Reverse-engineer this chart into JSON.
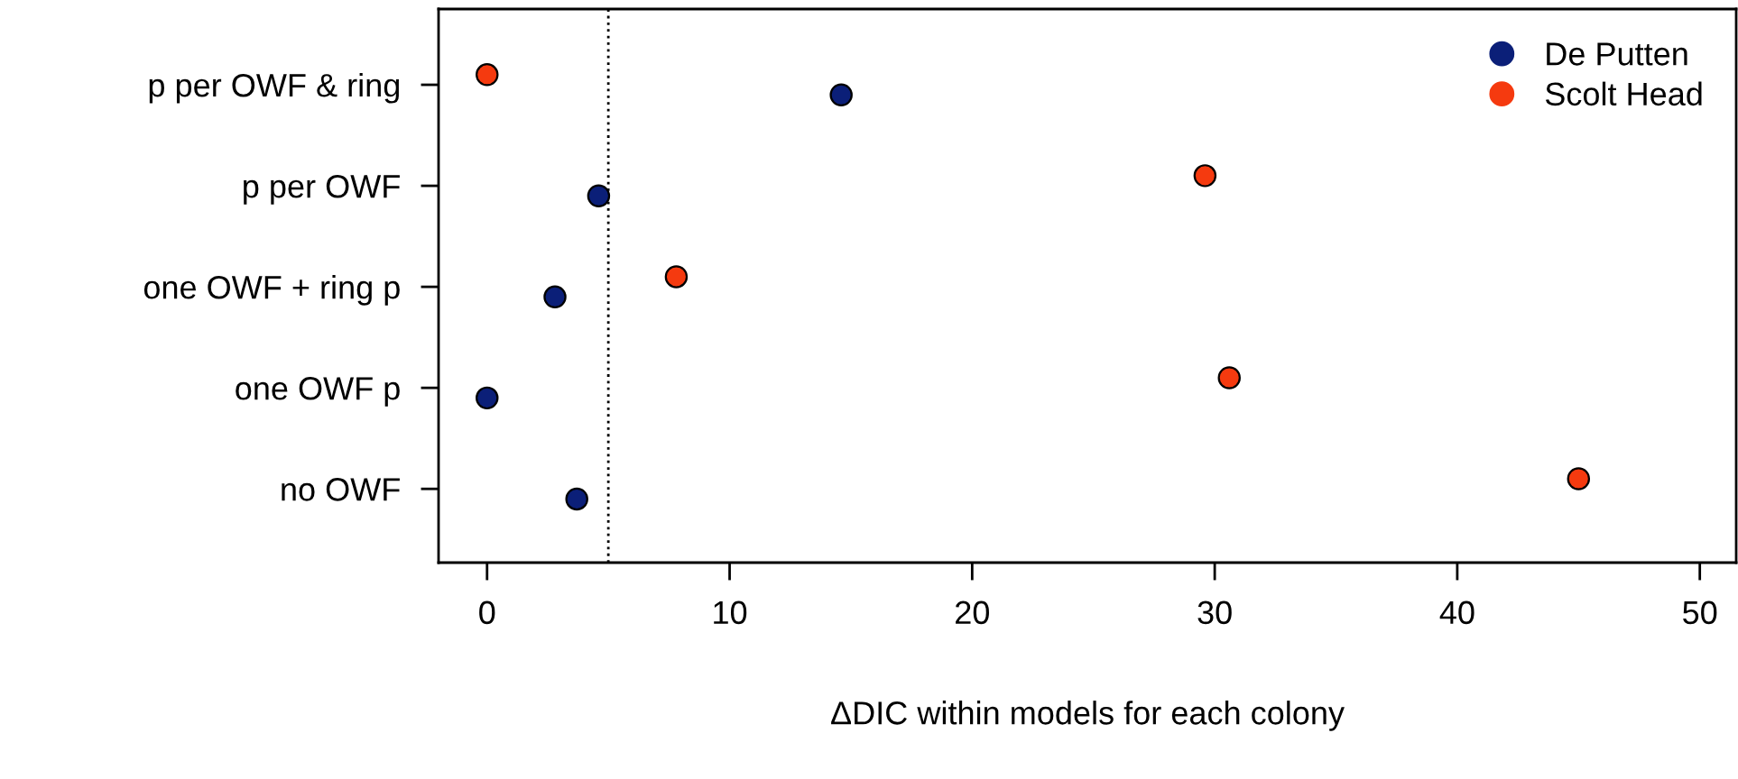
{
  "chart_data": {
    "type": "scatter",
    "orientation": "horizontal",
    "xlabel": "ΔDIC within models for each colony",
    "categories": [
      "p per OWF & ring",
      "p per OWF",
      "one OWF + ring p",
      "one OWF p",
      "no OWF"
    ],
    "series": [
      {
        "name": "De Putten",
        "color": "#0b1f78",
        "values": [
          14.6,
          4.6,
          2.8,
          0.0,
          3.7
        ]
      },
      {
        "name": "Scolt Head",
        "color": "#f53a0f",
        "values": [
          0.0,
          29.6,
          7.8,
          30.6,
          45.0
        ]
      }
    ],
    "xlim": [
      -2,
      51.5
    ],
    "xticks": [
      0,
      10,
      20,
      30,
      40,
      50
    ],
    "ref_lines": [
      {
        "axis": "x",
        "value": 5,
        "color": "#000000",
        "line_style": "dotted"
      }
    ],
    "marker": "circle",
    "legend": "top right",
    "grid": false
  }
}
